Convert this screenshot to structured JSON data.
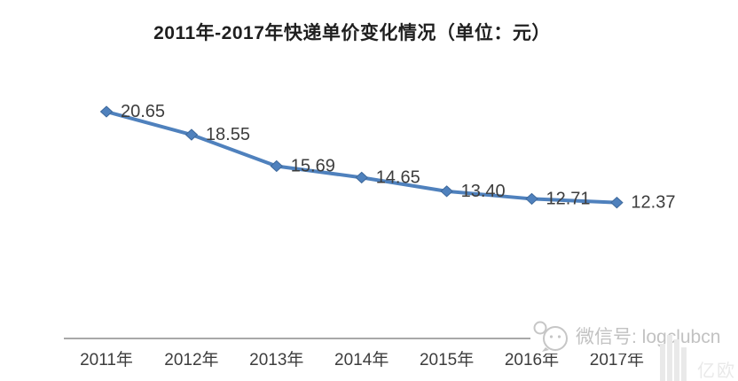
{
  "page": {
    "background_color": "#ffffff"
  },
  "chart_data": {
    "type": "line",
    "title": "2011年-2017年快递单价变化情况（单位：元）",
    "categories": [
      "2011年",
      "2012年",
      "2013年",
      "2014年",
      "2015年",
      "2016年",
      "2017年"
    ],
    "values": [
      20.65,
      18.55,
      15.69,
      14.65,
      13.4,
      12.71,
      12.37
    ],
    "data_labels": [
      "20.65",
      "18.55",
      "15.69",
      "14.65",
      "13.40",
      "12.71",
      "12.37"
    ],
    "xlabel": "",
    "ylabel": "",
    "ylim": [
      0,
      22
    ],
    "grid": false,
    "legend": "none",
    "marker": "diamond",
    "data_label_position": "right",
    "line_color": "#4f81bd",
    "marker_edge_color": "#3d689b",
    "label_color": "#3d3d3d",
    "title_color": "#1f1f1f",
    "axis_line_color": "#8c8c8c"
  },
  "watermark": {
    "wechat_icon": "wechat-bubbles-icon",
    "wechat_text": "微信号: logclubcn",
    "logo_bars_icon": "yiou-bars-icon",
    "logo_text": "亿欧",
    "text_color": "#c2c2c2",
    "icon_color": "#c6c6c6",
    "logo_color": "#e9e9e9"
  }
}
